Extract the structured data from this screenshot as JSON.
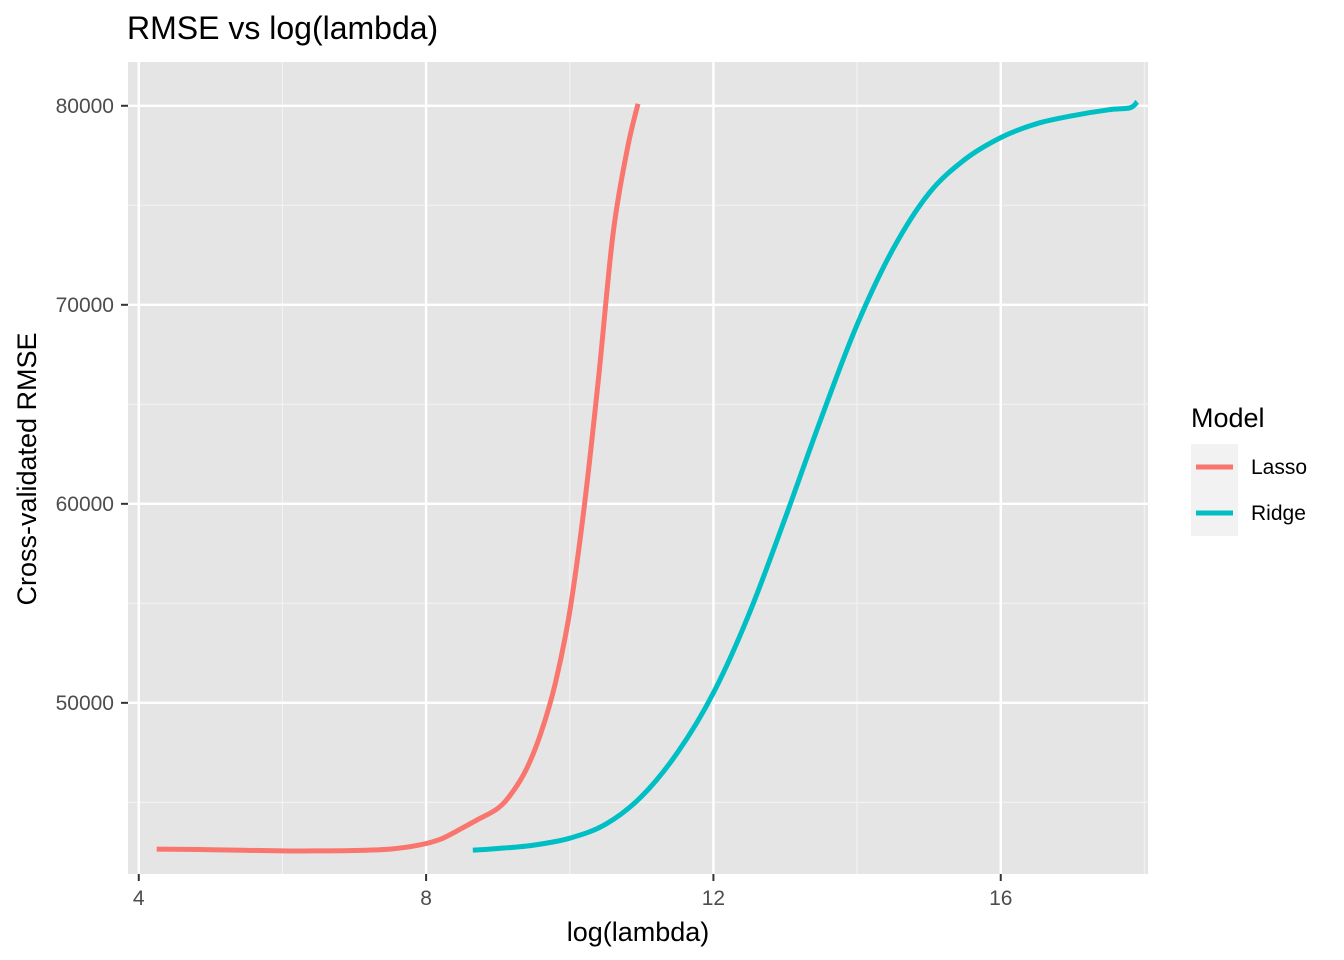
{
  "chart_data": {
    "type": "line",
    "title": "RMSE vs log(lambda)",
    "xlabel": "log(lambda)",
    "ylabel": "Cross-validated RMSE",
    "xlim": [
      3.85,
      18.05
    ],
    "ylim": [
      41400,
      82200
    ],
    "x_ticks": [
      4,
      8,
      12,
      16
    ],
    "x_tick_labels": [
      "4",
      "8",
      "12",
      "16"
    ],
    "y_ticks": [
      50000,
      60000,
      70000,
      80000
    ],
    "y_tick_labels": [
      "50000",
      "60000",
      "70000",
      "80000"
    ],
    "grid": true,
    "panel_background": "#e5e5e5",
    "legend": {
      "title": "Model",
      "position": "right"
    },
    "series": [
      {
        "name": "Lasso",
        "color": "#f8766d",
        "x": [
          4.25,
          5.0,
          6.0,
          6.5,
          7.0,
          7.5,
          7.9,
          8.2,
          8.5,
          8.7,
          9.0,
          9.2,
          9.4,
          9.6,
          9.8,
          10.0,
          10.2,
          10.4,
          10.6,
          10.8,
          10.95
        ],
        "y": [
          42650,
          42620,
          42560,
          42560,
          42580,
          42650,
          42850,
          43150,
          43700,
          44100,
          44700,
          45500,
          46700,
          48500,
          51000,
          54600,
          59800,
          66300,
          73500,
          77800,
          80100
        ]
      },
      {
        "name": "Ridge",
        "color": "#00bfc4",
        "x": [
          8.65,
          9.0,
          9.5,
          10.0,
          10.5,
          11.0,
          11.5,
          12.0,
          12.5,
          13.0,
          13.5,
          14.0,
          14.5,
          15.0,
          15.5,
          16.0,
          16.5,
          17.0,
          17.5,
          17.8,
          17.9
        ],
        "y": [
          42600,
          42680,
          42850,
          43200,
          43900,
          45300,
          47500,
          50500,
          54500,
          59300,
          64300,
          69000,
          72800,
          75600,
          77300,
          78400,
          79100,
          79500,
          79800,
          79900,
          80200
        ]
      }
    ]
  }
}
